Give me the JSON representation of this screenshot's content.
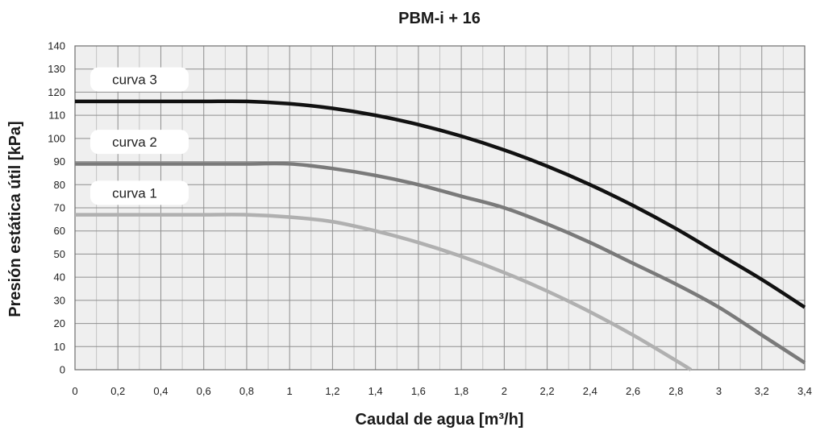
{
  "chart_data": {
    "type": "line",
    "title": "PBM-i + 16",
    "xlabel": "Caudal de agua [m³/h]",
    "ylabel": "Presión estática útil [kPa]",
    "xlim": [
      0,
      3.4
    ],
    "ylim": [
      0,
      140
    ],
    "x_ticks": [
      0,
      0.2,
      0.4,
      0.6,
      0.8,
      1,
      1.2,
      1.4,
      1.6,
      1.8,
      2,
      2.2,
      2.4,
      2.6,
      2.8,
      3,
      3.2,
      3.4
    ],
    "x_tick_labels": [
      "0",
      "0,2",
      "0,4",
      "0,6",
      "0,8",
      "1",
      "1,2",
      "1,4",
      "1,6",
      "1,8",
      "2",
      "2,2",
      "2,4",
      "2,6",
      "2,8",
      "3",
      "3,2",
      "3,4"
    ],
    "y_ticks": [
      0,
      10,
      20,
      30,
      40,
      50,
      60,
      70,
      80,
      90,
      100,
      110,
      120,
      130,
      140
    ],
    "y_tick_labels": [
      "0",
      "10",
      "20",
      "30",
      "40",
      "50",
      "60",
      "70",
      "80",
      "90",
      "100",
      "110",
      "120",
      "130",
      "140"
    ],
    "grid": true,
    "minor_grid_x": true,
    "series": [
      {
        "name": "curva 3",
        "color": "#111111",
        "x": [
          0,
          0.2,
          0.4,
          0.6,
          0.8,
          1.0,
          1.2,
          1.4,
          1.6,
          1.8,
          2.0,
          2.2,
          2.4,
          2.6,
          2.8,
          3.0,
          3.2,
          3.4
        ],
        "y": [
          116,
          116,
          116,
          116,
          116,
          115,
          113,
          110,
          106,
          101,
          95,
          88,
          80,
          71,
          61,
          50,
          39,
          27
        ]
      },
      {
        "name": "curva 2",
        "color": "#7a7a7a",
        "x": [
          0,
          0.2,
          0.4,
          0.6,
          0.8,
          1.0,
          1.2,
          1.4,
          1.6,
          1.8,
          2.0,
          2.2,
          2.4,
          2.6,
          2.8,
          3.0,
          3.2,
          3.4
        ],
        "y": [
          89,
          89,
          89,
          89,
          89,
          89,
          87,
          84,
          80,
          75,
          70,
          63,
          55,
          46,
          37,
          27,
          15,
          3
        ]
      },
      {
        "name": "curva 1",
        "color": "#b0b0b0",
        "x": [
          0,
          0.2,
          0.4,
          0.6,
          0.8,
          1.0,
          1.2,
          1.4,
          1.6,
          1.8,
          2.0,
          2.2,
          2.4,
          2.6,
          2.8,
          2.87
        ],
        "y": [
          67,
          67,
          67,
          67,
          67,
          66,
          64,
          60,
          55,
          49,
          42,
          34,
          25,
          15,
          4,
          0
        ]
      }
    ]
  }
}
